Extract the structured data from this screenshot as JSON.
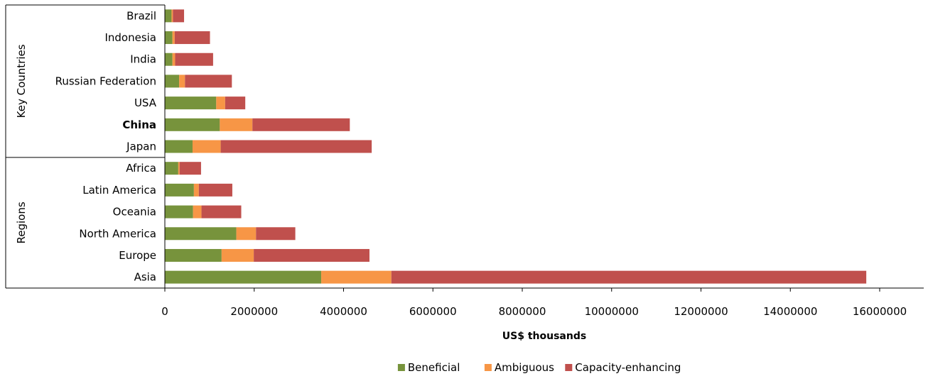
{
  "chart_data": {
    "type": "bar",
    "orientation": "horizontal",
    "stacked": true,
    "xlabel": "US$ thousands",
    "xlim": [
      0,
      16000000
    ],
    "x_ticks": [
      "0",
      "2000000",
      "4000000",
      "6000000",
      "8000000",
      "10000000",
      "12000000",
      "14000000",
      "16000000"
    ],
    "grid": false,
    "legend_position": "bottom",
    "groups": [
      {
        "label": "Key Countries",
        "categories": [
          "Brazil",
          "Indonesia",
          "India",
          "Russian Federation",
          "USA",
          "China",
          "Japan"
        ]
      },
      {
        "label": "Regions",
        "categories": [
          "Africa",
          "Latin America",
          "Oceania",
          "North America",
          "Europe",
          "Asia"
        ]
      }
    ],
    "categories": [
      "Brazil",
      "Indonesia",
      "India",
      "Russian Federation",
      "USA",
      "China",
      "Japan",
      "Africa",
      "Latin America",
      "Oceania",
      "North America",
      "Europe",
      "Asia"
    ],
    "bold_categories": [
      "China"
    ],
    "series": [
      {
        "name": "Beneficial",
        "color": "#77933c",
        "values": [
          150000,
          170000,
          170000,
          320000,
          1150000,
          1230000,
          620000,
          300000,
          650000,
          630000,
          1600000,
          1270000,
          3500000
        ]
      },
      {
        "name": "Ambiguous",
        "color": "#f79646",
        "values": [
          30000,
          50000,
          60000,
          130000,
          200000,
          730000,
          630000,
          30000,
          110000,
          190000,
          440000,
          720000,
          1570000
        ]
      },
      {
        "name": "Capacity-enhancing",
        "color": "#c0504d",
        "values": [
          250000,
          790000,
          850000,
          1050000,
          450000,
          2180000,
          3380000,
          480000,
          750000,
          890000,
          880000,
          2590000,
          10630000
        ]
      }
    ]
  }
}
